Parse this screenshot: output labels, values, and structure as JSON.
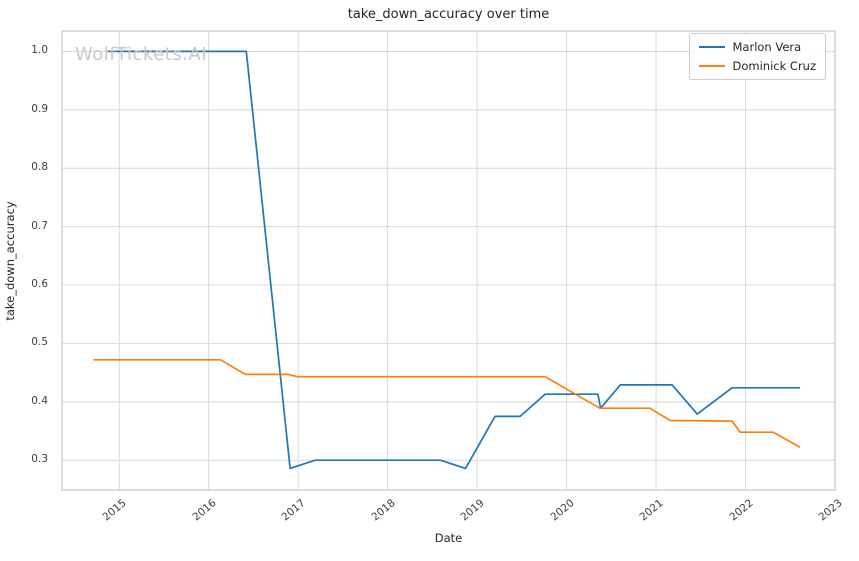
{
  "title": "take_down_accuracy over time",
  "watermark": "WolfTickets.AI",
  "colors": {
    "series_blue": "#1f77b4",
    "series_orange": "#ff7f0e",
    "gridline": "#d8d8d8",
    "spine": "#c7c7c7",
    "text": "#262626",
    "tick_text": "#3d3d3d",
    "watermark": "#c9c9c9",
    "background": "#ffffff"
  },
  "chart_data": {
    "type": "line",
    "title": "take_down_accuracy over time",
    "xlabel": "Date",
    "ylabel": "take_down_accuracy",
    "grid": true,
    "legend_position": "upper right",
    "xlim": [
      2014.36,
      2023.0
    ],
    "ylim": [
      0.249,
      1.035
    ],
    "x_tick_labels": [
      "2015",
      "2016",
      "2017",
      "2018",
      "2019",
      "2020",
      "2021",
      "2022",
      "2023"
    ],
    "x_tick_values": [
      2015,
      2016,
      2017,
      2018,
      2019,
      2020,
      2021,
      2022,
      2023
    ],
    "y_tick_labels": [
      "0.3",
      "0.4",
      "0.5",
      "0.6",
      "0.7",
      "0.8",
      "0.9",
      "1.0"
    ],
    "y_tick_values": [
      0.3,
      0.4,
      0.5,
      0.6,
      0.7,
      0.8,
      0.9,
      1.0
    ],
    "series": [
      {
        "name": "Marlon Vera",
        "color": "#1f77b4",
        "x": [
          2014.87,
          2016.42,
          2016.91,
          2017.19,
          2018.59,
          2018.87,
          2019.2,
          2019.48,
          2019.76,
          2020.35,
          2020.38,
          2020.6,
          2021.18,
          2021.46,
          2021.85,
          2022.61
        ],
        "y": [
          1.0,
          1.0,
          0.286,
          0.3,
          0.3,
          0.286,
          0.375,
          0.375,
          0.413,
          0.413,
          0.389,
          0.429,
          0.429,
          0.379,
          0.424,
          0.424
        ]
      },
      {
        "name": "Dominick Cruz",
        "color": "#ff7f0e",
        "x": [
          2014.71,
          2016.13,
          2016.41,
          2016.89,
          2016.99,
          2019.76,
          2020.37,
          2020.93,
          2021.16,
          2021.85,
          2021.94,
          2022.31,
          2022.61
        ],
        "y": [
          0.472,
          0.472,
          0.447,
          0.447,
          0.443,
          0.443,
          0.389,
          0.389,
          0.368,
          0.367,
          0.348,
          0.348,
          0.322
        ]
      }
    ]
  }
}
